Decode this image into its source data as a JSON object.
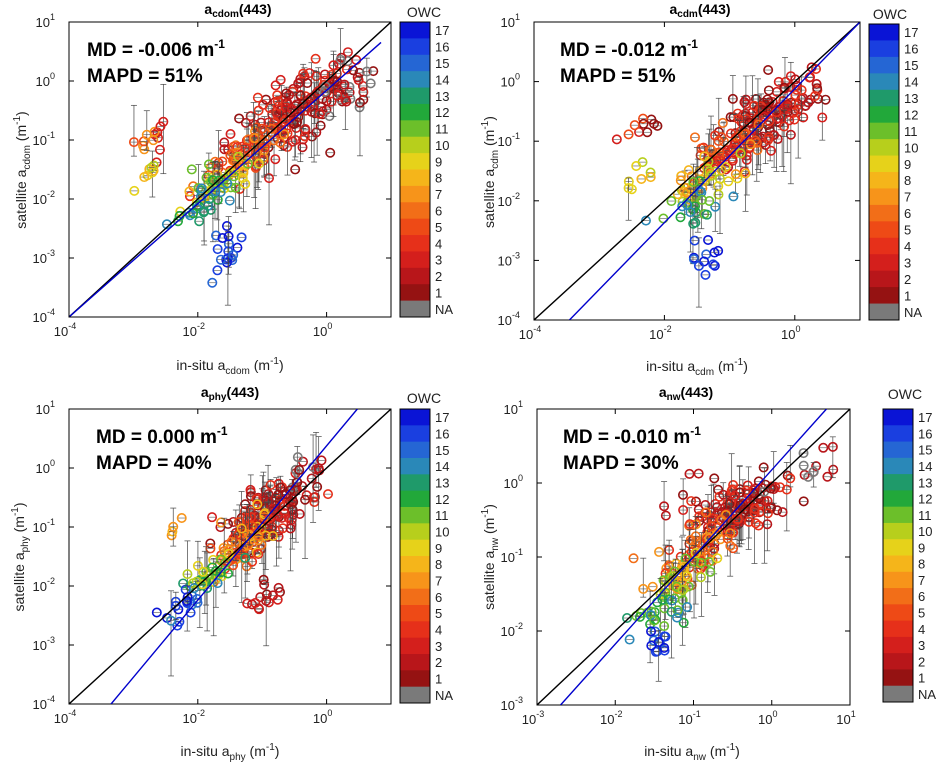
{
  "figure": {
    "colorbar_title": "OWC",
    "colorbar_levels": [
      "17",
      "16",
      "15",
      "14",
      "13",
      "12",
      "11",
      "10",
      "9",
      "8",
      "7",
      "6",
      "5",
      "4",
      "3",
      "2",
      "1",
      "NA"
    ],
    "colorbar_colors": [
      "#0a14d6",
      "#1a3fe0",
      "#2566d4",
      "#2a88b8",
      "#1f9a6a",
      "#22a83a",
      "#6cbf2a",
      "#b7cf1c",
      "#e6d21a",
      "#f5b51a",
      "#f7941a",
      "#f26e18",
      "#ee4a16",
      "#e6301a",
      "#d41f1c",
      "#b8161a",
      "#951212",
      "#7a7a7a"
    ],
    "one_to_one_color": "#000000",
    "fit_color": "#0000cc"
  },
  "chart_data": [
    {
      "type": "scatter",
      "title_main": "a",
      "title_sub": "cdom",
      "title_suffix": "(443)",
      "stats": {
        "md_text": "MD = -0.006 m",
        "md_exp": "-1",
        "mapd_text": "MAPD = 51%"
      },
      "xlabel": {
        "main": "in-situ a",
        "sub": "cdom",
        "unit": " (m",
        "unit_exp": "-1",
        "unit_close": ")"
      },
      "ylabel": {
        "main": "satellite a",
        "sub": "cdom",
        "unit": " (m",
        "unit_exp": "-1",
        "unit_close": ")"
      },
      "xlim": [
        0.0001,
        10
      ],
      "ylim": [
        0.0001,
        10
      ],
      "xticks": [
        {
          "v": 0.0001,
          "b": "10",
          "e": "-4"
        },
        {
          "v": 0.01,
          "b": "10",
          "e": "-2"
        },
        {
          "v": 1,
          "b": "10",
          "e": "0"
        }
      ],
      "yticks": [
        {
          "v": 0.0001,
          "b": "10",
          "e": "-4"
        },
        {
          "v": 0.001,
          "b": "10",
          "e": "-3"
        },
        {
          "v": 0.01,
          "b": "10",
          "e": "-2"
        },
        {
          "v": 0.1,
          "b": "10",
          "e": "-1"
        },
        {
          "v": 1,
          "b": "10",
          "e": "0"
        },
        {
          "v": 10,
          "b": "10",
          "e": "1"
        }
      ],
      "one_to_one": [
        [
          0.0001,
          0.0001
        ],
        [
          10,
          10
        ]
      ],
      "fit_line": [
        [
          0.0001,
          0.0001
        ],
        [
          7,
          4.5
        ]
      ],
      "clusters": [
        {
          "cx": 0.3,
          "cy": 0.3,
          "sx": 0.45,
          "sy": 0.45,
          "n": 150,
          "owc": [
            1,
            2,
            3,
            4
          ]
        },
        {
          "cx": 1.5,
          "cy": 0.6,
          "sx": 0.3,
          "sy": 0.3,
          "n": 40,
          "owc": [
            1,
            2,
            3,
            0
          ]
        },
        {
          "cx": 0.05,
          "cy": 0.05,
          "sx": 0.3,
          "sy": 0.25,
          "n": 70,
          "owc": [
            4,
            5,
            6,
            7
          ]
        },
        {
          "cx": 0.02,
          "cy": 0.02,
          "sx": 0.25,
          "sy": 0.2,
          "n": 40,
          "owc": [
            8,
            9,
            10,
            11
          ]
        },
        {
          "cx": 0.012,
          "cy": 0.008,
          "sx": 0.2,
          "sy": 0.2,
          "n": 25,
          "owc": [
            12,
            13,
            14
          ]
        },
        {
          "cx": 0.03,
          "cy": 0.0012,
          "sx": 0.12,
          "sy": 0.3,
          "n": 18,
          "owc": [
            15,
            16,
            17
          ]
        },
        {
          "cx": 0.002,
          "cy": 0.1,
          "sx": 0.12,
          "sy": 0.25,
          "n": 14,
          "owc": [
            3,
            5,
            7
          ]
        },
        {
          "cx": 0.0018,
          "cy": 0.03,
          "sx": 0.1,
          "sy": 0.15,
          "n": 8,
          "owc": [
            8,
            9,
            10
          ]
        }
      ]
    },
    {
      "type": "scatter",
      "title_main": "a",
      "title_sub": "cdm",
      "title_suffix": "(443)",
      "stats": {
        "md_text": "MD = -0.012 m",
        "md_exp": "-1",
        "mapd_text": "MAPD = 51%"
      },
      "xlabel": {
        "main": "in-situ a",
        "sub": "cdm",
        "unit": " (m",
        "unit_exp": "-1",
        "unit_close": ")"
      },
      "ylabel": {
        "main": "satellite a",
        "sub": "cdm",
        "unit": " (m",
        "unit_exp": "-1",
        "unit_close": ")"
      },
      "xlim": [
        0.0001,
        10
      ],
      "ylim": [
        0.0001,
        10
      ],
      "xticks": [
        {
          "v": 0.0001,
          "b": "10",
          "e": "-4"
        },
        {
          "v": 0.01,
          "b": "10",
          "e": "-2"
        },
        {
          "v": 1,
          "b": "10",
          "e": "0"
        }
      ],
      "yticks": [
        {
          "v": 0.0001,
          "b": "10",
          "e": "-4"
        },
        {
          "v": 0.001,
          "b": "10",
          "e": "-3"
        },
        {
          "v": 0.01,
          "b": "10",
          "e": "-2"
        },
        {
          "v": 0.1,
          "b": "10",
          "e": "-1"
        },
        {
          "v": 1,
          "b": "10",
          "e": "0"
        },
        {
          "v": 10,
          "b": "10",
          "e": "1"
        }
      ],
      "one_to_one": [
        [
          0.0001,
          0.0001
        ],
        [
          10,
          10
        ]
      ],
      "fit_line": [
        [
          0.00035,
          0.0001
        ],
        [
          10,
          10
        ]
      ],
      "clusters": [
        {
          "cx": 0.4,
          "cy": 0.25,
          "sx": 0.45,
          "sy": 0.4,
          "n": 140,
          "owc": [
            1,
            2,
            3,
            4
          ]
        },
        {
          "cx": 0.1,
          "cy": 0.08,
          "sx": 0.35,
          "sy": 0.3,
          "n": 60,
          "owc": [
            3,
            4,
            5,
            6
          ]
        },
        {
          "cx": 0.04,
          "cy": 0.02,
          "sx": 0.3,
          "sy": 0.25,
          "n": 40,
          "owc": [
            7,
            8,
            9,
            10
          ]
        },
        {
          "cx": 0.025,
          "cy": 0.008,
          "sx": 0.2,
          "sy": 0.25,
          "n": 25,
          "owc": [
            11,
            12,
            13,
            14
          ]
        },
        {
          "cx": 0.04,
          "cy": 0.0012,
          "sx": 0.12,
          "sy": 0.25,
          "n": 12,
          "owc": [
            15,
            16,
            17
          ]
        },
        {
          "cx": 0.005,
          "cy": 0.15,
          "sx": 0.15,
          "sy": 0.25,
          "n": 10,
          "owc": [
            1,
            3,
            5
          ]
        },
        {
          "cx": 0.004,
          "cy": 0.025,
          "sx": 0.1,
          "sy": 0.15,
          "n": 8,
          "owc": [
            8,
            9,
            10
          ]
        }
      ]
    },
    {
      "type": "scatter",
      "title_main": "a",
      "title_sub": "phy",
      "title_suffix": "(443)",
      "stats": {
        "md_text": "MD = 0.000 m",
        "md_exp": "-1",
        "mapd_text": "MAPD = 40%"
      },
      "xlabel": {
        "main": "in-situ a",
        "sub": "phy",
        "unit": " (m",
        "unit_exp": "-1",
        "unit_close": ")"
      },
      "ylabel": {
        "main": "satellite a",
        "sub": "phy",
        "unit": " (m",
        "unit_exp": "-1",
        "unit_close": ")"
      },
      "xlim": [
        0.0001,
        10
      ],
      "ylim": [
        0.0001,
        10
      ],
      "xticks": [
        {
          "v": 0.0001,
          "b": "10",
          "e": "-4"
        },
        {
          "v": 0.01,
          "b": "10",
          "e": "-2"
        },
        {
          "v": 1,
          "b": "10",
          "e": "0"
        }
      ],
      "yticks": [
        {
          "v": 0.0001,
          "b": "10",
          "e": "-4"
        },
        {
          "v": 0.001,
          "b": "10",
          "e": "-3"
        },
        {
          "v": 0.01,
          "b": "10",
          "e": "-2"
        },
        {
          "v": 0.1,
          "b": "10",
          "e": "-1"
        },
        {
          "v": 1,
          "b": "10",
          "e": "0"
        },
        {
          "v": 10,
          "b": "10",
          "e": "1"
        }
      ],
      "one_to_one": [
        [
          0.0001,
          0.0001
        ],
        [
          10,
          10
        ]
      ],
      "fit_line": [
        [
          0.00045,
          0.0001
        ],
        [
          3,
          10
        ]
      ],
      "clusters": [
        {
          "cx": 0.12,
          "cy": 0.15,
          "sx": 0.35,
          "sy": 0.35,
          "n": 150,
          "owc": [
            1,
            2,
            3,
            4
          ]
        },
        {
          "cx": 0.05,
          "cy": 0.05,
          "sx": 0.25,
          "sy": 0.3,
          "n": 60,
          "owc": [
            4,
            5,
            6,
            7,
            8
          ]
        },
        {
          "cx": 0.015,
          "cy": 0.015,
          "sx": 0.2,
          "sy": 0.2,
          "n": 35,
          "owc": [
            9,
            10,
            11,
            12,
            13
          ]
        },
        {
          "cx": 0.007,
          "cy": 0.005,
          "sx": 0.2,
          "sy": 0.2,
          "n": 20,
          "owc": [
            14,
            15,
            16,
            17
          ]
        },
        {
          "cx": 0.1,
          "cy": 0.006,
          "sx": 0.15,
          "sy": 0.25,
          "n": 15,
          "owc": [
            1,
            2,
            3
          ]
        },
        {
          "cx": 0.5,
          "cy": 0.9,
          "sx": 0.2,
          "sy": 0.2,
          "n": 15,
          "owc": [
            1,
            2,
            0
          ]
        },
        {
          "cx": 0.004,
          "cy": 0.1,
          "sx": 0.1,
          "sy": 0.1,
          "n": 4,
          "owc": [
            6,
            7,
            8
          ]
        }
      ]
    },
    {
      "type": "scatter",
      "title_main": "a",
      "title_sub": "nw",
      "title_suffix": "(443)",
      "stats": {
        "md_text": "MD = -0.010 m",
        "md_exp": "-1",
        "mapd_text": "MAPD = 30%"
      },
      "xlabel": {
        "main": "in-situ a",
        "sub": "nw",
        "unit": " (m",
        "unit_exp": "-1",
        "unit_close": ")"
      },
      "ylabel": {
        "main": "satellite a",
        "sub": "nw",
        "unit": " (m",
        "unit_exp": "-1",
        "unit_close": ")"
      },
      "xlim": [
        0.001,
        10
      ],
      "ylim": [
        0.001,
        10
      ],
      "xticks": [
        {
          "v": 0.001,
          "b": "10",
          "e": "-3"
        },
        {
          "v": 0.01,
          "b": "10",
          "e": "-2"
        },
        {
          "v": 0.1,
          "b": "10",
          "e": "-1"
        },
        {
          "v": 1,
          "b": "10",
          "e": "0"
        },
        {
          "v": 10,
          "b": "10",
          "e": "1"
        }
      ],
      "yticks": [
        {
          "v": 0.001,
          "b": "10",
          "e": "-3"
        },
        {
          "v": 0.01,
          "b": "10",
          "e": "-2"
        },
        {
          "v": 0.1,
          "b": "10",
          "e": "-1"
        },
        {
          "v": 1,
          "b": "10",
          "e": "0"
        },
        {
          "v": 10,
          "b": "10",
          "e": "1"
        }
      ],
      "one_to_one": [
        [
          0.001,
          0.001
        ],
        [
          10,
          10
        ]
      ],
      "fit_line": [
        [
          0.002,
          0.001
        ],
        [
          5,
          10
        ]
      ],
      "clusters": [
        {
          "cx": 0.4,
          "cy": 0.45,
          "sx": 0.3,
          "sy": 0.3,
          "n": 140,
          "owc": [
            1,
            2,
            3,
            4
          ]
        },
        {
          "cx": 0.12,
          "cy": 0.12,
          "sx": 0.25,
          "sy": 0.25,
          "n": 70,
          "owc": [
            4,
            5,
            6,
            7
          ]
        },
        {
          "cx": 0.06,
          "cy": 0.05,
          "sx": 0.2,
          "sy": 0.2,
          "n": 40,
          "owc": [
            7,
            8,
            9,
            10,
            11
          ]
        },
        {
          "cx": 0.04,
          "cy": 0.02,
          "sx": 0.15,
          "sy": 0.2,
          "n": 25,
          "owc": [
            11,
            12,
            13,
            14
          ]
        },
        {
          "cx": 0.035,
          "cy": 0.007,
          "sx": 0.08,
          "sy": 0.15,
          "n": 12,
          "owc": [
            15,
            16,
            17
          ]
        },
        {
          "cx": 2.5,
          "cy": 1.5,
          "sx": 0.25,
          "sy": 0.25,
          "n": 15,
          "owc": [
            1,
            2,
            0
          ]
        },
        {
          "cx": 0.07,
          "cy": 0.6,
          "sx": 0.2,
          "sy": 0.2,
          "n": 5,
          "owc": [
            1,
            2
          ]
        }
      ]
    }
  ]
}
